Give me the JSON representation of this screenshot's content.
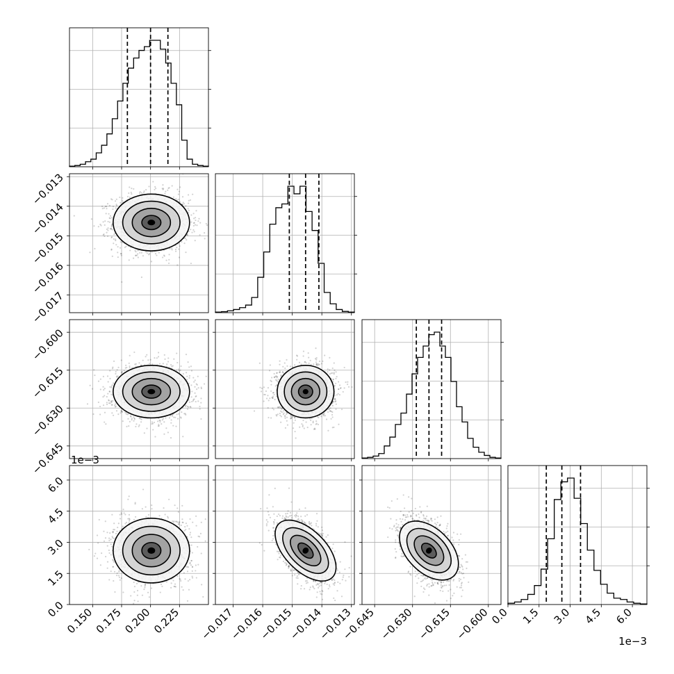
{
  "chart_data": {
    "type": "scatter",
    "title": "",
    "grid": true,
    "params": [
      {
        "range": [
          0.13,
          0.25
        ],
        "ticks": [
          0.15,
          0.175,
          0.2,
          0.225
        ],
        "tick_labels": [
          "0.150",
          "0.175",
          "0.200",
          "0.225"
        ],
        "offset_label": ""
      },
      {
        "range": [
          -0.0176,
          -0.0129
        ],
        "ticks": [
          -0.017,
          -0.016,
          -0.015,
          -0.014,
          -0.013
        ],
        "tick_labels": [
          "−0.017",
          "−0.016",
          "−0.015",
          "−0.014",
          "−0.013"
        ],
        "offset_label": ""
      },
      {
        "range": [
          -0.65,
          -0.595
        ],
        "ticks": [
          -0.645,
          -0.63,
          -0.615,
          -0.6
        ],
        "tick_labels": [
          "−0.645",
          "−0.630",
          "−0.615",
          "−0.600"
        ],
        "offset_label": ""
      },
      {
        "range": [
          0.0,
          0.0067
        ],
        "ticks": [
          0.0,
          0.0015,
          0.003,
          0.0045,
          0.006
        ],
        "tick_labels": [
          "0.0",
          "1.5",
          "3.0",
          "4.5",
          "6.0"
        ],
        "offset_label": "1e−3"
      }
    ],
    "quantiles": [
      [
        0.18,
        0.2,
        0.215
      ],
      [
        -0.0151,
        -0.01455,
        -0.0141
      ],
      [
        -0.6285,
        -0.6235,
        -0.6185
      ],
      [
        0.00185,
        0.0026,
        0.0035
      ]
    ],
    "histograms": [
      [
        0.5,
        1,
        2,
        4,
        6,
        11,
        17,
        26,
        38,
        52,
        66,
        78,
        86,
        92,
        95,
        100,
        100,
        93,
        82,
        66,
        49,
        21,
        6,
        2,
        1,
        0.5
      ],
      [
        0.5,
        0.8,
        1.5,
        2.5,
        4,
        6,
        12,
        28,
        48,
        70,
        83,
        86,
        100,
        94,
        100,
        80,
        65,
        39,
        16,
        7,
        2.5,
        1,
        0.5
      ],
      [
        0.5,
        1,
        2,
        4,
        10,
        17,
        27,
        36,
        51,
        67,
        80,
        89,
        98,
        100,
        89,
        80,
        61,
        41,
        29,
        16,
        9,
        5,
        2.5,
        1,
        0.5
      ],
      [
        1,
        2,
        4,
        8,
        15,
        28,
        52,
        83,
        97,
        100,
        84,
        64,
        43,
        27,
        16,
        9,
        5,
        4,
        2,
        1,
        0.5
      ]
    ],
    "correlations": [
      [
        1,
        0,
        0,
        0
      ],
      [
        0,
        1,
        0,
        -0.55
      ],
      [
        0,
        0,
        1,
        -0.45
      ],
      [
        0,
        -0.55,
        -0.45,
        1
      ]
    ],
    "means": [
      0.2007,
      -0.01455,
      -0.6235,
      0.0026
    ],
    "sigmas": [
      0.0165,
      0.00048,
      0.0052,
      0.00078
    ],
    "contour_levels_sigma": [
      0.5,
      1.0,
      1.5,
      2.0
    ],
    "sample_count": 1800
  }
}
